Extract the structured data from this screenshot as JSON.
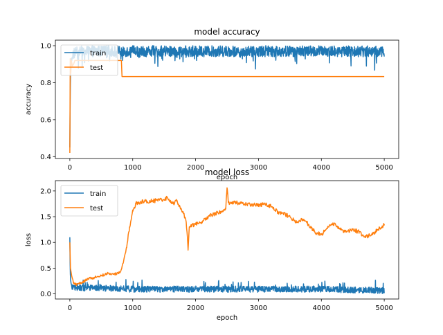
{
  "chart_data": [
    {
      "type": "line",
      "title": "model accuracy",
      "xlabel": "epoch",
      "ylabel": "accuracy",
      "xlim": [
        -230,
        5230
      ],
      "ylim": [
        0.39,
        1.03
      ],
      "xticks": [
        0,
        1000,
        2000,
        3000,
        4000,
        5000
      ],
      "yticks": [
        0.4,
        0.6,
        0.8,
        1.0
      ],
      "ytick_labels": [
        "0.4",
        "0.6",
        "0.8",
        "1.0"
      ],
      "legend": {
        "placement": "upper-left",
        "entries": [
          "train",
          "test"
        ]
      },
      "series": [
        {
          "name": "train",
          "color": "#1f77b4",
          "pattern": "rises from ~0.5 to ~0.95 within first ~30 epochs, then oscillates in 0.90–1.00 band with occasional dips to ~0.88 through epoch 5000",
          "x": [
            0,
            5,
            10,
            20,
            40,
            100,
            500,
            1000,
            2000,
            3000,
            4000,
            5000
          ],
          "y": [
            0.45,
            0.7,
            0.85,
            0.92,
            0.95,
            0.97,
            0.97,
            0.97,
            0.97,
            0.97,
            0.97,
            0.97
          ]
        },
        {
          "name": "test",
          "color": "#ff7f0e",
          "x": [
            0,
            3,
            6,
            10,
            15,
            25,
            40,
            60,
            80,
            100,
            200,
            820,
            830,
            5000
          ],
          "y": [
            0.42,
            0.66,
            0.93,
            0.9,
            0.85,
            0.92,
            0.89,
            0.9,
            0.92,
            0.92,
            0.92,
            0.92,
            0.833,
            0.833
          ]
        }
      ]
    },
    {
      "type": "line",
      "title": "model loss",
      "xlabel": "epoch",
      "ylabel": "loss",
      "xlim": [
        -230,
        5230
      ],
      "ylim": [
        -0.1,
        2.2
      ],
      "xticks": [
        0,
        1000,
        2000,
        3000,
        4000,
        5000
      ],
      "yticks": [
        0.0,
        0.5,
        1.0,
        1.5,
        2.0
      ],
      "ytick_labels": [
        "0.0",
        "0.5",
        "1.0",
        "1.5",
        "2.0"
      ],
      "legend": {
        "placement": "upper-left",
        "entries": [
          "train",
          "test"
        ]
      },
      "series": [
        {
          "name": "train",
          "color": "#1f77b4",
          "pattern": "starts ~1.1, drops quickly to ~0.1, then oscillates between 0.0 and ~0.25 through epoch 5000",
          "x": [
            0,
            5,
            10,
            20,
            40,
            100,
            500,
            1000,
            2000,
            3000,
            4000,
            5000
          ],
          "y": [
            1.1,
            0.5,
            0.3,
            0.2,
            0.12,
            0.1,
            0.1,
            0.08,
            0.08,
            0.08,
            0.08,
            0.05
          ]
        },
        {
          "name": "test",
          "color": "#ff7f0e",
          "x": [
            0,
            10,
            30,
            60,
            100,
            200,
            300,
            400,
            500,
            600,
            700,
            800,
            850,
            900,
            950,
            1000,
            1050,
            1100,
            1200,
            1300,
            1400,
            1500,
            1550,
            1600,
            1650,
            1700,
            1750,
            1800,
            1850,
            1870,
            1880,
            1900,
            2000,
            2100,
            2200,
            2300,
            2400,
            2480,
            2500,
            2520,
            2550,
            2600,
            2800,
            3000,
            3100,
            3200,
            3300,
            3400,
            3500,
            3600,
            3700,
            3800,
            3900,
            4000,
            4100,
            4200,
            4300,
            4400,
            4500,
            4600,
            4700,
            4800,
            4900,
            5000
          ],
          "y": [
            1.0,
            0.5,
            0.35,
            0.2,
            0.18,
            0.22,
            0.3,
            0.32,
            0.35,
            0.4,
            0.38,
            0.42,
            0.6,
            0.9,
            1.3,
            1.6,
            1.75,
            1.78,
            1.8,
            1.8,
            1.82,
            1.83,
            1.88,
            1.78,
            1.75,
            1.8,
            1.7,
            1.6,
            1.4,
            1.1,
            0.85,
            1.3,
            1.35,
            1.4,
            1.5,
            1.55,
            1.6,
            1.65,
            2.06,
            1.8,
            1.75,
            1.78,
            1.75,
            1.72,
            1.75,
            1.7,
            1.6,
            1.55,
            1.5,
            1.4,
            1.45,
            1.35,
            1.2,
            1.15,
            1.3,
            1.35,
            1.25,
            1.2,
            1.25,
            1.2,
            1.1,
            1.15,
            1.25,
            1.35
          ]
        }
      ]
    }
  ]
}
